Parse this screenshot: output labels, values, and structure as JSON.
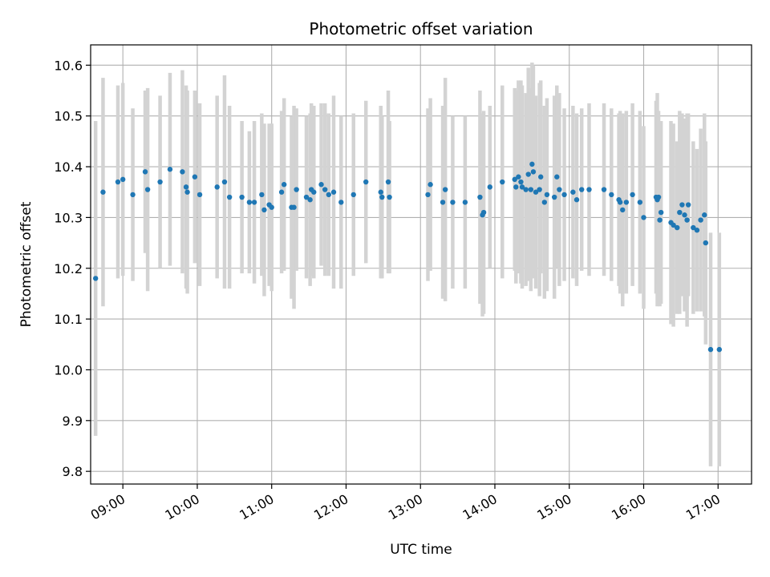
{
  "chart_data": {
    "type": "scatter",
    "title": "Photometric offset variation",
    "xlabel": "UTC time",
    "ylabel": "Photometric offset",
    "xlim": [
      "08:34",
      "17:27"
    ],
    "ylim": [
      9.775,
      10.64
    ],
    "grid": true,
    "x_ticks": [
      "09:00",
      "10:00",
      "11:00",
      "12:00",
      "13:00",
      "14:00",
      "15:00",
      "16:00",
      "17:00"
    ],
    "y_ticks": [
      "9.8",
      "9.9",
      "10.0",
      "10.1",
      "10.2",
      "10.3",
      "10.4",
      "10.5",
      "10.6"
    ],
    "colors": {
      "points": "#1f77b4",
      "error_bars": "#d3d3d3",
      "grid": "#b0b0b0"
    },
    "series": [
      {
        "x": [
          "08:38",
          "08:44",
          "08:56",
          "09:00",
          "09:08",
          "09:18",
          "09:20",
          "09:30",
          "09:38",
          "09:48",
          "09:51",
          "09:52",
          "09:58",
          "10:02",
          "10:16",
          "10:22",
          "10:26",
          "10:36",
          "10:42",
          "10:46",
          "10:52",
          "10:54",
          "10:58",
          "11:00",
          "11:08",
          "11:10",
          "11:16",
          "11:18",
          "11:20",
          "11:28",
          "11:31",
          "11:32",
          "11:34",
          "11:40",
          "11:43",
          "11:46",
          "11:50",
          "11:56",
          "12:06",
          "12:16",
          "12:28",
          "12:29",
          "12:34",
          "12:35",
          "13:06",
          "13:08",
          "13:18",
          "13:20",
          "13:26",
          "13:36",
          "13:48",
          "13:50",
          "13:51",
          "13:56",
          "14:06",
          "14:16",
          "14:17",
          "14:19",
          "14:21",
          "14:22",
          "14:25",
          "14:27",
          "14:29",
          "14:30",
          "14:31",
          "14:33",
          "14:36",
          "14:37",
          "14:40",
          "14:42",
          "14:48",
          "14:50",
          "14:52",
          "14:56",
          "15:03",
          "15:06",
          "15:10",
          "15:16",
          "15:28",
          "15:34",
          "15:40",
          "15:41",
          "15:43",
          "15:46",
          "15:51",
          "15:57",
          "16:00",
          "16:10",
          "16:11",
          "16:12",
          "16:13",
          "16:14",
          "16:22",
          "16:24",
          "16:27",
          "16:29",
          "16:31",
          "16:33",
          "16:35",
          "16:36",
          "16:40",
          "16:43",
          "16:46",
          "16:49",
          "16:50",
          "16:54",
          "17:01"
        ],
        "y": [
          10.18,
          10.35,
          10.37,
          10.375,
          10.345,
          10.39,
          10.355,
          10.37,
          10.395,
          10.39,
          10.36,
          10.35,
          10.38,
          10.345,
          10.36,
          10.37,
          10.34,
          10.34,
          10.33,
          10.33,
          10.345,
          10.315,
          10.325,
          10.32,
          10.35,
          10.365,
          10.32,
          10.32,
          10.355,
          10.34,
          10.335,
          10.355,
          10.35,
          10.365,
          10.355,
          10.345,
          10.35,
          10.33,
          10.345,
          10.37,
          10.35,
          10.34,
          10.37,
          10.34,
          10.345,
          10.365,
          10.33,
          10.355,
          10.33,
          10.33,
          10.34,
          10.305,
          10.31,
          10.36,
          10.37,
          10.375,
          10.36,
          10.38,
          10.37,
          10.36,
          10.355,
          10.385,
          10.355,
          10.405,
          10.39,
          10.35,
          10.355,
          10.38,
          10.33,
          10.345,
          10.34,
          10.38,
          10.355,
          10.345,
          10.35,
          10.335,
          10.355,
          10.355,
          10.355,
          10.345,
          10.335,
          10.33,
          10.315,
          10.33,
          10.345,
          10.33,
          10.3,
          10.34,
          10.335,
          10.34,
          10.295,
          10.31,
          10.29,
          10.285,
          10.28,
          10.31,
          10.325,
          10.305,
          10.295,
          10.325,
          10.28,
          10.275,
          10.295,
          10.305,
          10.25,
          10.04,
          10.04
        ],
        "err": [
          0.31,
          0.225,
          0.19,
          0.19,
          0.17,
          0.16,
          0.2,
          0.17,
          0.19,
          0.2,
          0.2,
          0.2,
          0.17,
          0.18,
          0.18,
          0.21,
          0.18,
          0.15,
          0.14,
          0.16,
          0.16,
          0.17,
          0.16,
          0.165,
          0.16,
          0.17,
          0.18,
          0.2,
          0.16,
          0.16,
          0.17,
          0.17,
          0.17,
          0.16,
          0.17,
          0.16,
          0.19,
          0.17,
          0.16,
          0.16,
          0.17,
          0.16,
          0.18,
          0.15,
          0.17,
          0.17,
          0.19,
          0.22,
          0.17,
          0.17,
          0.21,
          0.2,
          0.2,
          0.16,
          0.19,
          0.18,
          0.19,
          0.19,
          0.2,
          0.2,
          0.19,
          0.21,
          0.2,
          0.2,
          0.21,
          0.19,
          0.21,
          0.19,
          0.19,
          0.19,
          0.2,
          0.18,
          0.19,
          0.17,
          0.17,
          0.17,
          0.16,
          0.17,
          0.17,
          0.17,
          0.17,
          0.18,
          0.19,
          0.18,
          0.18,
          0.18,
          0.18,
          0.19,
          0.21,
          0.17,
          0.17,
          0.18,
          0.2,
          0.2,
          0.17,
          0.2,
          0.18,
          0.19,
          0.21,
          0.18,
          0.17,
          0.16,
          0.18,
          0.2,
          0.2,
          0.23,
          0.23
        ]
      }
    ]
  }
}
